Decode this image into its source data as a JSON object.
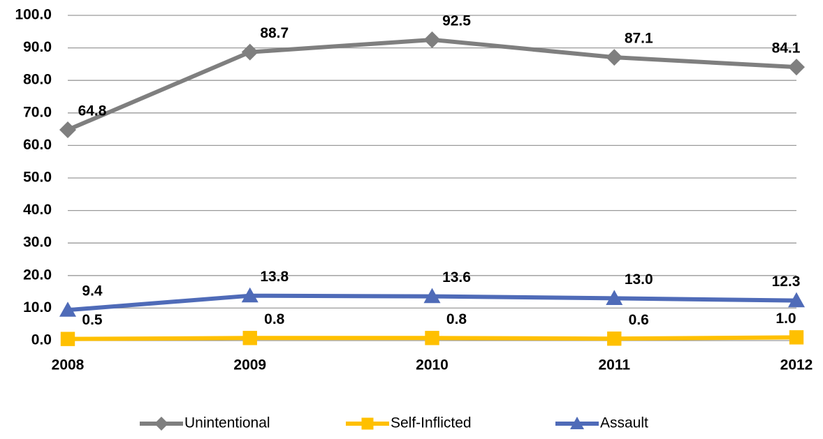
{
  "chart_data": {
    "type": "line",
    "categories": [
      "2008",
      "2009",
      "2010",
      "2011",
      "2012"
    ],
    "series": [
      {
        "name": "Unintentional",
        "color": "#7f7f7f",
        "marker": "diamond",
        "values": [
          64.8,
          88.7,
          92.5,
          87.1,
          84.1
        ],
        "value_labels": [
          "64.8",
          "88.7",
          "92.5",
          "87.1",
          "84.1"
        ]
      },
      {
        "name": "Self-Inflicted",
        "color": "#ffc000",
        "marker": "square",
        "values": [
          0.5,
          0.8,
          0.8,
          0.6,
          1.0
        ],
        "value_labels": [
          "0.5",
          "0.8",
          "0.8",
          "0.6",
          "1.0"
        ]
      },
      {
        "name": "Assault",
        "color": "#4f6bb8",
        "marker": "triangle",
        "values": [
          9.4,
          13.8,
          13.6,
          13.0,
          12.3
        ],
        "value_labels": [
          "9.4",
          "13.8",
          "13.6",
          "13.0",
          "12.3"
        ]
      }
    ],
    "ylim": [
      0,
      100
    ],
    "yticks": [
      {
        "value": 0,
        "label": "0.0"
      },
      {
        "value": 10,
        "label": "10.0"
      },
      {
        "value": 20,
        "label": "20.0"
      },
      {
        "value": 30,
        "label": "30.0"
      },
      {
        "value": 40,
        "label": "40.0"
      },
      {
        "value": 50,
        "label": "50.0"
      },
      {
        "value": 60,
        "label": "60.0"
      },
      {
        "value": 70,
        "label": "70.0"
      },
      {
        "value": 80,
        "label": "80.0"
      },
      {
        "value": 90,
        "label": "90.0"
      },
      {
        "value": 100,
        "label": "100.0"
      }
    ],
    "grid": true,
    "legend": "bottom"
  }
}
